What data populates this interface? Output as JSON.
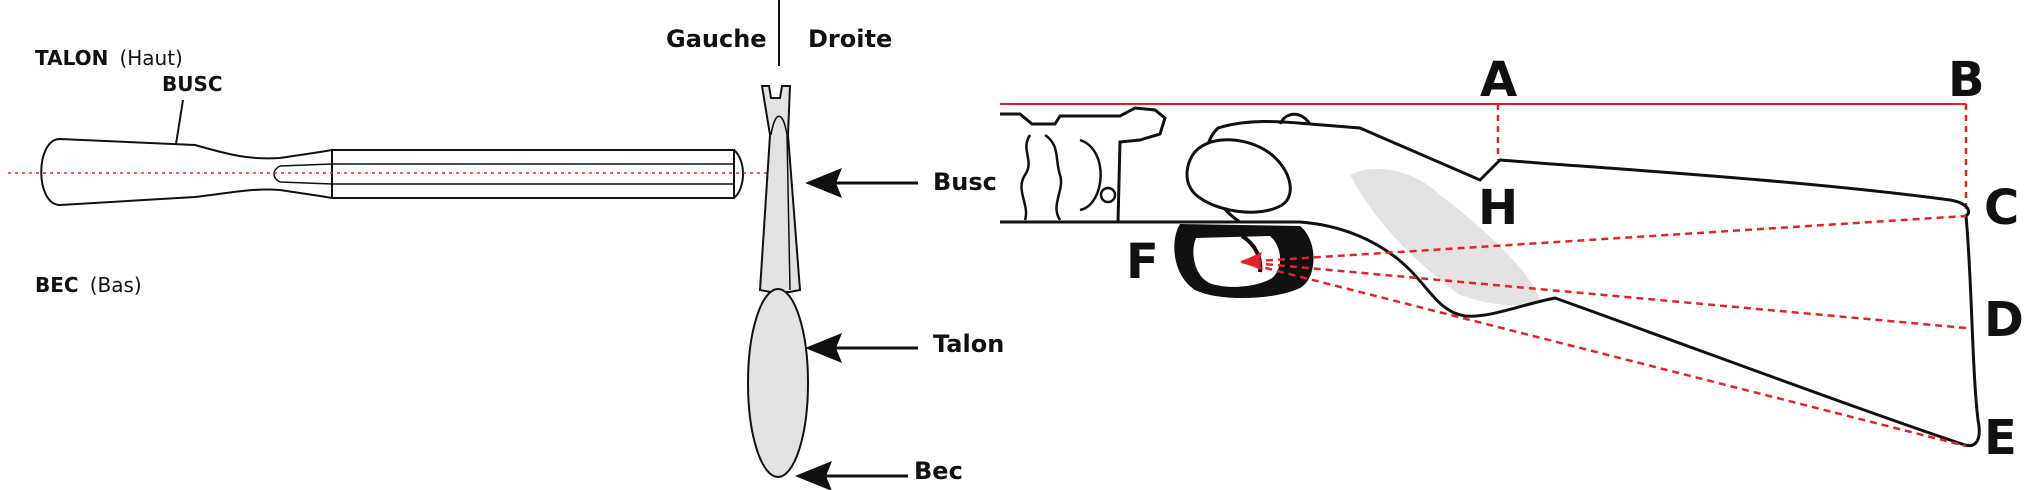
{
  "panel_top_view": {
    "talon_label": "TALON",
    "talon_note": "(Haut)",
    "busc_label": "BUSC",
    "bec_label": "BEC",
    "bec_note": "(Bas)"
  },
  "panel_rear_view": {
    "left_label": "Gauche",
    "right_label": "Droite",
    "arrow_labels": [
      "Busc",
      "Talon",
      "Bec"
    ]
  },
  "panel_side_view": {
    "points": {
      "a": "A",
      "b": "B",
      "c": "C",
      "d": "D",
      "e": "E",
      "f": "F",
      "h": "H"
    }
  },
  "colors": {
    "outline": "#111111",
    "measure_line": "#e0242a",
    "shading": "#e3e1e1"
  }
}
